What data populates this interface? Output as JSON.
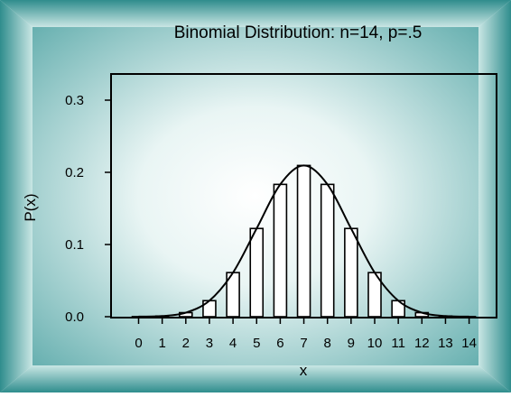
{
  "chart_data": {
    "type": "bar",
    "title": "Binomial Distribution: n=14, p=.5",
    "xlabel": "x",
    "ylabel": "P(x)",
    "ylim": [
      0,
      0.3
    ],
    "xlim": [
      -0.5,
      14.5
    ],
    "x": [
      0,
      1,
      2,
      3,
      4,
      5,
      6,
      7,
      8,
      9,
      10,
      11,
      12,
      13,
      14
    ],
    "values": [
      0.0001,
      0.0009,
      0.0056,
      0.0222,
      0.0611,
      0.1222,
      0.1833,
      0.2095,
      0.1833,
      0.1222,
      0.0611,
      0.0222,
      0.0056,
      0.0009,
      0.0001
    ],
    "x_ticks": [
      "0",
      "1",
      "2",
      "3",
      "4",
      "5",
      "6",
      "7",
      "8",
      "9",
      "10",
      "11",
      "12",
      "13",
      "14"
    ],
    "y_ticks": [
      "0.0",
      "0.1",
      "0.2",
      "0.3"
    ],
    "y_tick_values": [
      0,
      0.1,
      0.2,
      0.3
    ],
    "overlay": "smooth line through bar tops",
    "grid": false,
    "legend": "none",
    "colors": {
      "frame_outer": "#2e8b8b",
      "frame_inner": "#c9e6e4",
      "plot_center": "#ffffff",
      "plot_edge": "#5aa9a9",
      "bar_fill": "#ffffff",
      "line": "#000000"
    }
  }
}
